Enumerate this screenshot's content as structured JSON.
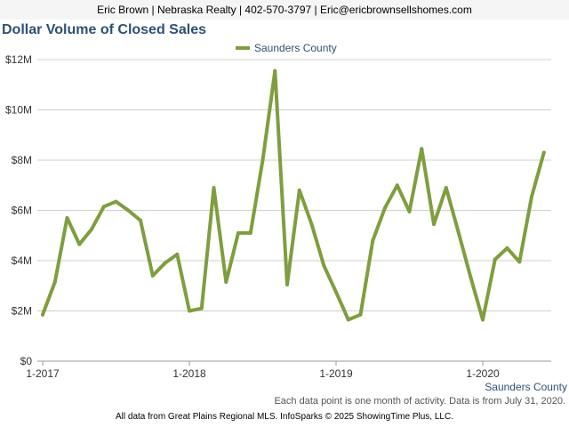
{
  "header": {
    "text": "Eric Brown | Nebraska Realty | 402-570-3797 | Eric@ericbrownsellshomes.com"
  },
  "footnote": "Each data point is one month of activity. Data is from July 31, 2020.",
  "source": "All data from Great Plains Regional MLS. InfoSparks © 2025 ShowingTime Plus, LLC.",
  "colors": {
    "series": "#7f9e3f",
    "title": "#2e5075",
    "grid": "#d0d0d0"
  },
  "chart_data": {
    "type": "line",
    "title": "Dollar Volume of Closed Sales",
    "corner_label": "Saunders County",
    "legend_position": "top-center",
    "grid": true,
    "ylim": [
      0,
      12000000
    ],
    "yticks": [
      {
        "value": 0,
        "label": "$0"
      },
      {
        "value": 2000000,
        "label": "$2M"
      },
      {
        "value": 4000000,
        "label": "$4M"
      },
      {
        "value": 6000000,
        "label": "$6M"
      },
      {
        "value": 8000000,
        "label": "$8M"
      },
      {
        "value": 10000000,
        "label": "$10M"
      },
      {
        "value": 12000000,
        "label": "$12M"
      }
    ],
    "xticks": [
      {
        "month": "2017-01",
        "label": "1-2017"
      },
      {
        "month": "2018-01",
        "label": "1-2018"
      },
      {
        "month": "2019-01",
        "label": "1-2019"
      },
      {
        "month": "2020-01",
        "label": "1-2020"
      }
    ],
    "x": [
      "2017-01",
      "2017-02",
      "2017-03",
      "2017-04",
      "2017-05",
      "2017-06",
      "2017-07",
      "2017-08",
      "2017-09",
      "2017-10",
      "2017-11",
      "2017-12",
      "2018-01",
      "2018-02",
      "2018-03",
      "2018-04",
      "2018-05",
      "2018-06",
      "2018-07",
      "2018-08",
      "2018-09",
      "2018-10",
      "2018-11",
      "2018-12",
      "2019-01",
      "2019-02",
      "2019-03",
      "2019-04",
      "2019-05",
      "2019-06",
      "2019-07",
      "2019-08",
      "2019-09",
      "2019-10",
      "2019-11",
      "2019-12",
      "2020-01",
      "2020-02",
      "2020-03",
      "2020-04",
      "2020-05",
      "2020-06"
    ],
    "series": [
      {
        "name": "Saunders County",
        "values": [
          1850000,
          3150000,
          5700000,
          4650000,
          5250000,
          6150000,
          6350000,
          6000000,
          5600000,
          3400000,
          3900000,
          4250000,
          2000000,
          2100000,
          6900000,
          3150000,
          5100000,
          5100000,
          8000000,
          11550000,
          3050000,
          6800000,
          5450000,
          3800000,
          2750000,
          1650000,
          1850000,
          4800000,
          6100000,
          7000000,
          5950000,
          8450000,
          5450000,
          6900000,
          5150000,
          3350000,
          1650000,
          4050000,
          4500000,
          3950000,
          6550000,
          8300000
        ]
      }
    ]
  }
}
